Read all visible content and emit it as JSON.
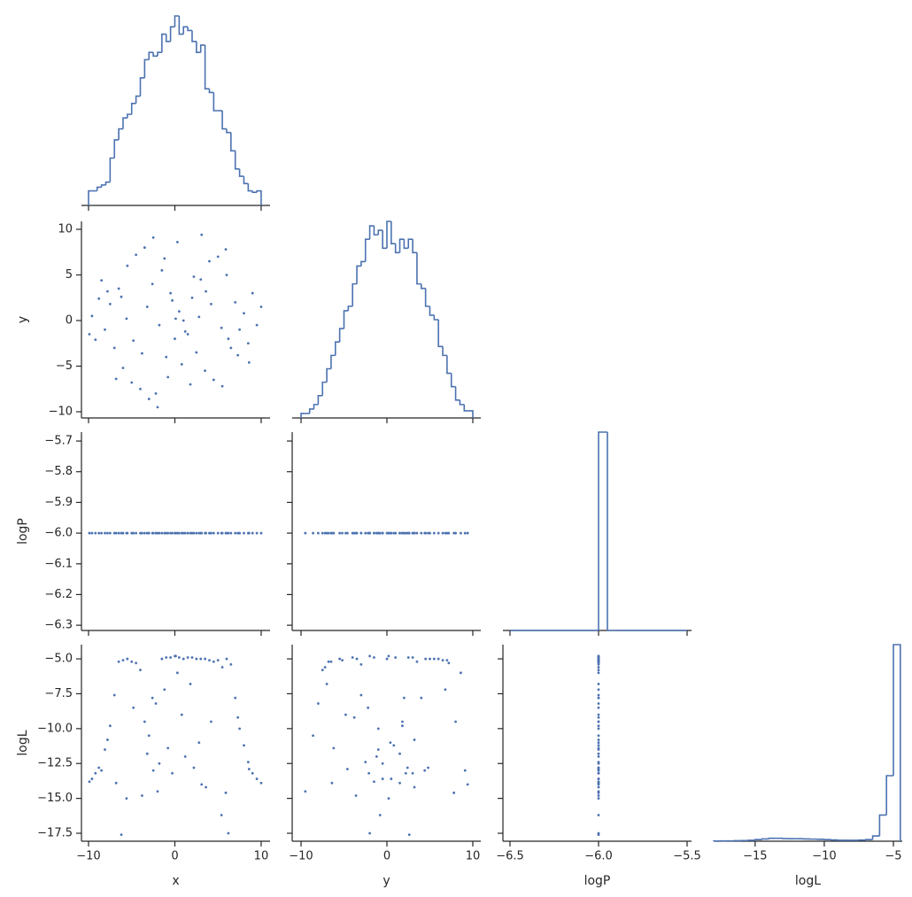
{
  "chart_data": {
    "type": "corner",
    "color": "#4c72b0",
    "variables": [
      {
        "name": "x",
        "xlim": [
          -10.82,
          11.03
        ],
        "xticks": [
          {
            "value": -10,
            "label": "−10"
          },
          0,
          10
        ]
      },
      {
        "name": "y",
        "xlim": [
          -11.03,
          10.93
        ],
        "xticks": [
          {
            "value": -10,
            "label": "−10"
          },
          0,
          10
        ],
        "ylim": [
          -10.68,
          10.87
        ],
        "yticks": [
          {
            "value": -10,
            "label": "−10"
          },
          {
            "value": -5,
            "label": "−5"
          },
          0,
          5,
          10
        ]
      },
      {
        "name": "logP",
        "xlim": [
          -6.54,
          -5.475
        ],
        "xticks": [
          {
            "value": -6.5,
            "label": "−6.5"
          },
          {
            "value": -6.0,
            "label": "−6.0"
          },
          {
            "value": -5.5,
            "label": "−5.5"
          }
        ],
        "ylim": [
          -6.317,
          -5.671
        ],
        "yticks": [
          {
            "value": -6.3,
            "label": "−6.3"
          },
          {
            "value": -6.2,
            "label": "−6.2"
          },
          {
            "value": -6.1,
            "label": "−6.1"
          },
          {
            "value": -6.0,
            "label": "−6.0"
          },
          {
            "value": -5.9,
            "label": "−5.9"
          },
          {
            "value": -5.8,
            "label": "−5.8"
          },
          {
            "value": -5.7,
            "label": "−5.7"
          }
        ]
      },
      {
        "name": "logL",
        "xlim": [
          -18.0,
          -4.36
        ],
        "xticks": [
          {
            "value": -15,
            "label": "−15"
          },
          {
            "value": -10,
            "label": "−10"
          },
          {
            "value": -5,
            "label": "−5"
          }
        ],
        "ylim": [
          -18.07,
          -3.98
        ],
        "yticks": [
          {
            "value": -17.5,
            "label": "−17.5"
          },
          {
            "value": -15,
            "label": "−15.0"
          },
          {
            "value": -12.5,
            "label": "−12.5"
          },
          {
            "value": -10,
            "label": "−10.0"
          },
          {
            "value": -7.5,
            "label": "−7.5"
          },
          {
            "value": -5,
            "label": "−5.0"
          }
        ]
      }
    ],
    "samples": [
      [
        -9.6,
        -9.2,
        -8.8,
        -8.1,
        -7.5,
        -7.0,
        -6.5,
        -6.0,
        -5.5,
        -5.0,
        -4.5,
        -4.0,
        -3.5,
        -3.0,
        -2.5,
        -2.0,
        -1.5,
        -1.0,
        -0.5,
        0.0,
        0.5,
        1.0,
        1.5,
        2.0,
        2.5,
        3.0,
        3.5,
        4.0,
        4.5,
        5.0,
        5.5,
        6.0,
        6.5,
        7.0,
        7.5,
        8.0,
        8.5,
        9.0,
        9.5,
        10.0,
        -9.9,
        -3.2,
        -1.8,
        -0.3,
        1.2,
        2.8,
        4.2,
        -4.8,
        -2.6,
        0.8,
        3.6,
        -5.6,
        5.4,
        -6.2,
        6.2,
        -1.2,
        1.8,
        -3.8,
        2.2,
        -0.8,
        0.3,
        -2.2,
        3.1,
        5.9,
        -6.8,
        -8.5,
        8.6,
        -7.8,
        7.3,
        0.1
      ],
      [
        0.5,
        -2.1,
        2.4,
        -1.0,
        1.8,
        -3.0,
        3.5,
        -5.2,
        6.0,
        -6.8,
        7.2,
        -7.5,
        8.0,
        -8.6,
        9.1,
        -9.5,
        5.5,
        -4.0,
        3.0,
        -2.0,
        1.0,
        0.0,
        -1.5,
        2.5,
        -3.5,
        4.5,
        -5.5,
        6.5,
        -6.5,
        7.0,
        -7.2,
        5.0,
        -3.0,
        2.0,
        -1.0,
        0.8,
        -2.5,
        3.0,
        -0.5,
        1.5,
        -1.5,
        1.5,
        -0.5,
        2.2,
        -1.2,
        0.4,
        1.8,
        -2.2,
        4.0,
        -4.8,
        3.2,
        0.2,
        -0.8,
        2.6,
        -2.0,
        6.8,
        -7.0,
        -3.6,
        4.8,
        -6.2,
        8.6,
        -8.0,
        9.4,
        7.8,
        -6.4,
        4.4,
        -4.6,
        3.2,
        -3.8,
        0.2
      ],
      [
        -6,
        -6,
        -6,
        -6,
        -6,
        -6,
        -6,
        -6,
        -6,
        -6,
        -6,
        -6,
        -6,
        -6,
        -6,
        -6,
        -6,
        -6,
        -6,
        -6,
        -6,
        -6,
        -6,
        -6,
        -6,
        -6,
        -6,
        -6,
        -6,
        -6,
        -6,
        -6,
        -6,
        -6,
        -6,
        -6,
        -6,
        -6,
        -6,
        -6,
        -6,
        -6,
        -6,
        -6,
        -6,
        -6,
        -6,
        -6,
        -6,
        -6,
        -6,
        -6,
        -6,
        -6,
        -6,
        -6,
        -6,
        -6,
        -6,
        -6,
        -6,
        -6,
        -6,
        -6,
        -6,
        -6,
        -6,
        -6,
        -6,
        -6
      ],
      [
        -13.6,
        -13.2,
        -12.8,
        -11.5,
        -9.8,
        -7.6,
        -5.2,
        -5.1,
        -5.0,
        -5.2,
        -5.3,
        -5.8,
        -9.5,
        -10.5,
        -13.0,
        -14.5,
        -5.0,
        -4.9,
        -4.9,
        -4.8,
        -4.9,
        -5.0,
        -4.9,
        -4.9,
        -5.0,
        -5.0,
        -5.0,
        -5.1,
        -5.2,
        -5.1,
        -5.6,
        -5.0,
        -5.4,
        -7.8,
        -10.0,
        -11.2,
        -12.4,
        -13.2,
        -13.6,
        -13.9,
        -13.8,
        -11.8,
        -12.5,
        -13.2,
        -12.0,
        -11.0,
        -9.5,
        -8.5,
        -7.8,
        -9.0,
        -14.2,
        -15.0,
        -16.2,
        -17.6,
        -17.5,
        -7.2,
        -6.8,
        -14.8,
        -12.8,
        -11.4,
        -6.0,
        -8.2,
        -14.0,
        -14.6,
        -13.9,
        -13.0,
        -12.9,
        -10.8,
        -9.2,
        -4.8
      ]
    ],
    "histograms": [
      {
        "bins": [
          -10,
          -9.5,
          -9,
          -8.5,
          -8,
          -7.5,
          -7,
          -6.5,
          -6,
          -5.5,
          -5,
          -4.5,
          -4,
          -3.5,
          -3,
          -2.5,
          -2,
          -1.5,
          -1,
          -0.5,
          0,
          0.5,
          1,
          1.5,
          2,
          2.5,
          3,
          3.5,
          4,
          4.5,
          5,
          5.5,
          6,
          6.5,
          7,
          7.5,
          8,
          8.5,
          9,
          9.5,
          10
        ],
        "counts": [
          20,
          20,
          25,
          28,
          32,
          65,
          90,
          105,
          120,
          125,
          140,
          150,
          175,
          200,
          210,
          205,
          210,
          235,
          225,
          245,
          260,
          235,
          245,
          240,
          225,
          210,
          220,
          160,
          155,
          130,
          130,
          105,
          100,
          75,
          50,
          40,
          30,
          20,
          18,
          20
        ]
      },
      {
        "bins": [
          -10,
          -9.5,
          -9,
          -8.5,
          -8,
          -7.5,
          -7,
          -6.5,
          -6,
          -5.5,
          -5,
          -4.5,
          -4,
          -3.5,
          -3,
          -2.5,
          -2,
          -1.5,
          -1,
          -0.5,
          0,
          0.5,
          1,
          1.5,
          2,
          2.5,
          3,
          3.5,
          4,
          4.5,
          5,
          5.5,
          6,
          6.5,
          7,
          7.5,
          8,
          8.5,
          9,
          9.5,
          10
        ],
        "counts": [
          5,
          5,
          10,
          15,
          25,
          40,
          55,
          70,
          85,
          100,
          120,
          125,
          150,
          170,
          175,
          200,
          215,
          205,
          210,
          190,
          220,
          195,
          185,
          200,
          190,
          200,
          185,
          150,
          145,
          125,
          115,
          110,
          80,
          70,
          50,
          35,
          20,
          15,
          8,
          8
        ]
      },
      {
        "bins": [
          -6.5,
          -6.45,
          -6.4,
          -6.35,
          -6.3,
          -6.25,
          -6.2,
          -6.15,
          -6.1,
          -6.05,
          -6,
          -5.95,
          -5.9,
          -5.85,
          -5.8,
          -5.75,
          -5.7,
          -5.65,
          -5.6,
          -5.55,
          -5.5
        ],
        "counts": [
          0,
          0,
          0,
          0,
          0,
          0,
          0,
          0,
          0,
          0,
          70,
          0,
          0,
          0,
          0,
          0,
          0,
          0,
          0,
          0
        ]
      },
      {
        "bins": [
          -18,
          -17.5,
          -17,
          -16.5,
          -16,
          -15.5,
          -15,
          -14.5,
          -14,
          -13.5,
          -13,
          -12.5,
          -12,
          -11.5,
          -11,
          -10.5,
          -10,
          -9.5,
          -9,
          -8.5,
          -8,
          -7.5,
          -7,
          -6.5,
          -6,
          -5.5,
          -5,
          -4.5
        ],
        "counts": [
          3,
          4,
          5,
          8,
          10,
          15,
          25,
          35,
          45,
          45,
          40,
          38,
          38,
          35,
          32,
          30,
          25,
          20,
          15,
          14,
          14,
          18,
          25,
          80,
          400,
          1000,
          3000
        ]
      }
    ]
  }
}
